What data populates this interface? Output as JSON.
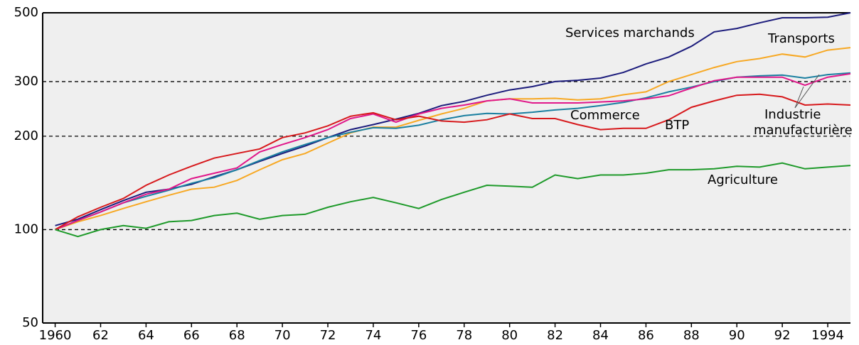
{
  "chart_data": {
    "type": "line",
    "log_scale": true,
    "grid": true,
    "x": [
      1960,
      1961,
      1962,
      1963,
      1964,
      1965,
      1966,
      1967,
      1968,
      1969,
      1970,
      1971,
      1972,
      1973,
      1974,
      1975,
      1976,
      1977,
      1978,
      1979,
      1980,
      1981,
      1982,
      1983,
      1984,
      1985,
      1986,
      1987,
      1988,
      1989,
      1990,
      1991,
      1992,
      1993,
      1994,
      1995
    ],
    "xlim": [
      1959.45,
      1995.0
    ],
    "xticks": [
      {
        "value": 1960,
        "label": "1960"
      },
      {
        "value": 1962,
        "label": "62"
      },
      {
        "value": 1964,
        "label": "64"
      },
      {
        "value": 1966,
        "label": "66"
      },
      {
        "value": 1968,
        "label": "68"
      },
      {
        "value": 1970,
        "label": "70"
      },
      {
        "value": 1972,
        "label": "72"
      },
      {
        "value": 1974,
        "label": "74"
      },
      {
        "value": 1976,
        "label": "76"
      },
      {
        "value": 1978,
        "label": "78"
      },
      {
        "value": 1980,
        "label": "80"
      },
      {
        "value": 1982,
        "label": "82"
      },
      {
        "value": 1984,
        "label": "84"
      },
      {
        "value": 1986,
        "label": "86"
      },
      {
        "value": 1988,
        "label": "88"
      },
      {
        "value": 1990,
        "label": "90"
      },
      {
        "value": 1992,
        "label": "92"
      },
      {
        "value": 1994,
        "label": "1994"
      }
    ],
    "ylim": [
      50,
      500
    ],
    "yticks": [
      50,
      100,
      200,
      300,
      500
    ],
    "series": [
      {
        "name": "Services marchands",
        "color": "#1c1c7c",
        "values": [
          103,
          108,
          116,
          124,
          132,
          135,
          140,
          148,
          156,
          166,
          176,
          186,
          198,
          210,
          218,
          227,
          237,
          251,
          259,
          271,
          282,
          289,
          300,
          303,
          308,
          321,
          342,
          360,
          390,
          434,
          445,
          464,
          482,
          482,
          484,
          500
        ]
      },
      {
        "name": "Transports",
        "color": "#f7a823",
        "values": [
          100,
          106,
          111,
          117,
          123,
          129,
          135,
          137,
          144,
          156,
          168,
          176,
          190,
          205,
          214,
          214,
          225,
          236,
          246,
          260,
          264,
          264,
          265,
          262,
          264,
          272,
          278,
          300,
          316,
          333,
          348,
          356,
          368,
          360,
          379,
          386
        ]
      },
      {
        "name": "Commerce",
        "color": "#1a7fa0",
        "values": [
          100,
          107,
          114,
          122,
          128,
          134,
          141,
          147,
          156,
          167,
          178,
          188,
          198,
          206,
          213,
          212,
          217,
          226,
          233,
          237,
          236,
          239,
          243,
          246,
          251,
          257,
          266,
          278,
          288,
          300,
          310,
          313,
          315,
          308,
          316,
          320
        ]
      },
      {
        "name": "Industrie manufacturière",
        "color": "#e0178a",
        "values": [
          100,
          107,
          114,
          122,
          130,
          135,
          146,
          152,
          158,
          178,
          188,
          198,
          210,
          228,
          236,
          222,
          236,
          246,
          252,
          260,
          264,
          256,
          256,
          256,
          258,
          260,
          264,
          270,
          286,
          302,
          310,
          310,
          310,
          292,
          310,
          318
        ]
      },
      {
        "name": "BTP",
        "color": "#d7191c",
        "values": [
          100,
          110,
          118,
          126,
          139,
          150,
          160,
          170,
          176,
          182,
          198,
          205,
          216,
          232,
          238,
          226,
          232,
          224,
          222,
          226,
          236,
          228,
          228,
          218,
          210,
          212,
          212,
          226,
          248,
          260,
          271,
          273,
          268,
          252,
          254,
          252
        ]
      },
      {
        "name": "Agriculture",
        "color": "#1e9a2a",
        "values": [
          100,
          95,
          100,
          103,
          101,
          106,
          107,
          111,
          113,
          108,
          111,
          112,
          118,
          123,
          127,
          122,
          117,
          125,
          132,
          139,
          138,
          137,
          150,
          146,
          150,
          150,
          152,
          156,
          156,
          157,
          160,
          159,
          164,
          157,
          159,
          161
        ]
      }
    ]
  }
}
